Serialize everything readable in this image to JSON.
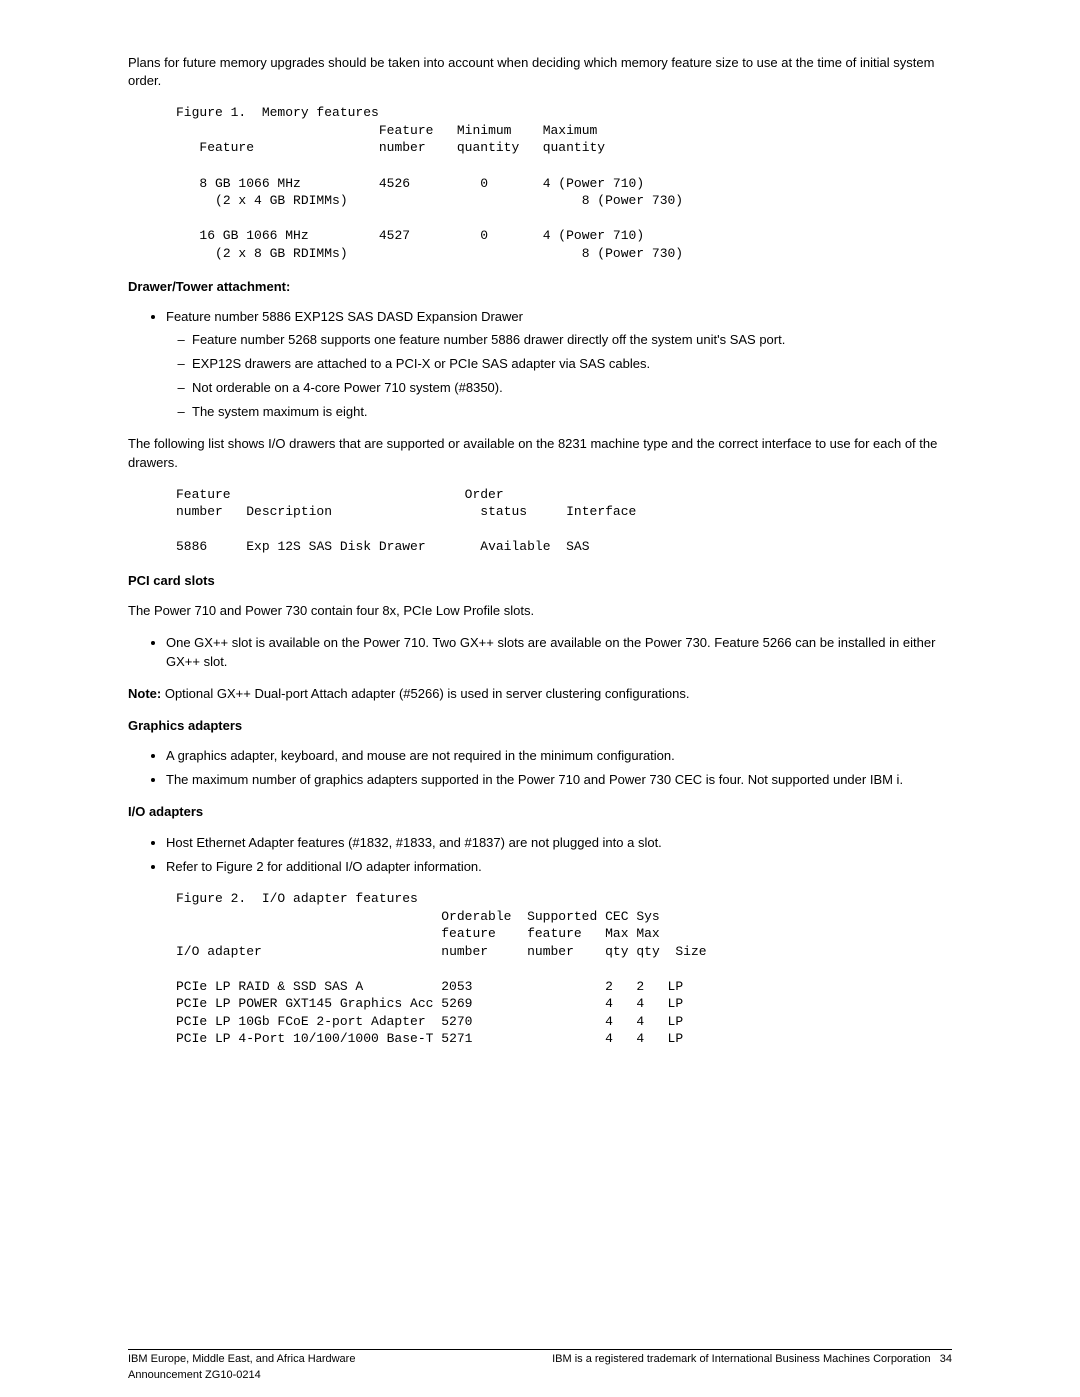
{
  "intro_paragraph": "Plans for future memory upgrades should be taken into account when deciding which memory feature size to use at the time of initial system order.",
  "figure1": {
    "title": "Figure 1.  Memory features",
    "headers": {
      "feature": "Feature",
      "feature_number_l1": "Feature",
      "feature_number_l2": "number",
      "min_l1": "Minimum",
      "min_l2": "quantity",
      "max_l1": "Maximum",
      "max_l2": "quantity"
    },
    "rows": [
      {
        "name_l1": "8 GB 1066 MHz",
        "name_l2": "(2 x 4 GB RDIMMs)",
        "number": "4526",
        "min": "0",
        "max_l1": "4 (Power 710)",
        "max_l2": "8 (Power 730)"
      },
      {
        "name_l1": "16 GB 1066 MHz",
        "name_l2": "(2 x 8 GB RDIMMs)",
        "number": "4527",
        "min": "0",
        "max_l1": "4 (Power 710)",
        "max_l2": "8 (Power 730)"
      }
    ]
  },
  "drawer_heading": "Drawer/Tower attachment:",
  "drawer_bullet": "Feature number 5886 EXP12S SAS DASD Expansion Drawer",
  "drawer_subs": {
    "s1": "Feature number 5268 supports one feature number 5886 drawer directly off the system unit's SAS port.",
    "s2": "EXP12S drawers are attached to a PCI-X or PCIe SAS adapter via SAS cables.",
    "s3": "Not orderable on a 4-core Power 710 system (#8350).",
    "s4": "The system maximum is eight."
  },
  "drawer_paragraph": "The following list shows I/O drawers that are supported or available on the 8231 machine type and the correct interface to use for each of the drawers.",
  "drawer_table": {
    "h_num_l1": "Feature",
    "h_num_l2": "number",
    "h_desc": "Description",
    "h_order_l1": "Order",
    "h_order_l2": "status",
    "h_interface": "Interface",
    "row": {
      "num": "5886",
      "desc": "Exp 12S SAS Disk Drawer",
      "status": "Available",
      "interface": "SAS"
    }
  },
  "pci_heading": "PCI card slots",
  "pci_paragraph": "The Power 710 and Power 730 contain four 8x, PCIe Low Profile slots.",
  "pci_bullet": "One GX++ slot is available on the Power 710. Two GX++ slots are available on the Power 730. Feature 5266 can be installed in either GX++ slot.",
  "note_label": "Note:",
  "note_text": "  Optional GX++ Dual-port Attach adapter (#5266) is used in server clustering configurations.",
  "graphics_heading": "Graphics adapters",
  "graphics_bullets": {
    "b1": "A graphics adapter, keyboard, and mouse are not required in the minimum configuration.",
    "b2": "The maximum number of graphics adapters supported in the Power 710 and Power 730 CEC is four. Not supported under IBM i."
  },
  "io_heading": "I/O adapters",
  "io_bullets": {
    "b1": "Host Ethernet Adapter features (#1832, #1833, and #1837) are not plugged into a slot.",
    "b2": "Refer to Figure 2 for additional I/O adapter information."
  },
  "figure2": {
    "title": "Figure 2.  I/O adapter features",
    "headers": {
      "adapter": "I/O adapter",
      "ord_l1": "Orderable",
      "ord_l2": "feature",
      "ord_l3": "number",
      "sup_l1": "Supported",
      "sup_l2": "feature",
      "sup_l3": "number",
      "cec_l1": "CEC",
      "cec_l2": "Max",
      "cec_l3": "qty",
      "sys_l1": "Sys",
      "sys_l2": "Max",
      "sys_l3": "qty",
      "size": "Size"
    },
    "rows": [
      {
        "name": "PCIe LP RAID & SSD SAS A",
        "ord": "2053",
        "cec": "2",
        "sys": "2",
        "size": "LP"
      },
      {
        "name": "PCIe LP POWER GXT145 Graphics Acc",
        "ord": "5269",
        "cec": "4",
        "sys": "4",
        "size": "LP"
      },
      {
        "name": "PCIe LP 10Gb FCoE 2-port Adapter",
        "ord": "5270",
        "cec": "4",
        "sys": "4",
        "size": "LP"
      },
      {
        "name": "PCIe LP 4-Port 10/100/1000 Base-T",
        "ord": "5271",
        "cec": "4",
        "sys": "4",
        "size": "LP"
      }
    ]
  },
  "footer": {
    "left_l1": "IBM Europe, Middle East, and Africa Hardware",
    "left_l2": "Announcement ZG10-0214",
    "right": "IBM is a registered trademark of International Business Machines Corporation",
    "page": "34"
  }
}
